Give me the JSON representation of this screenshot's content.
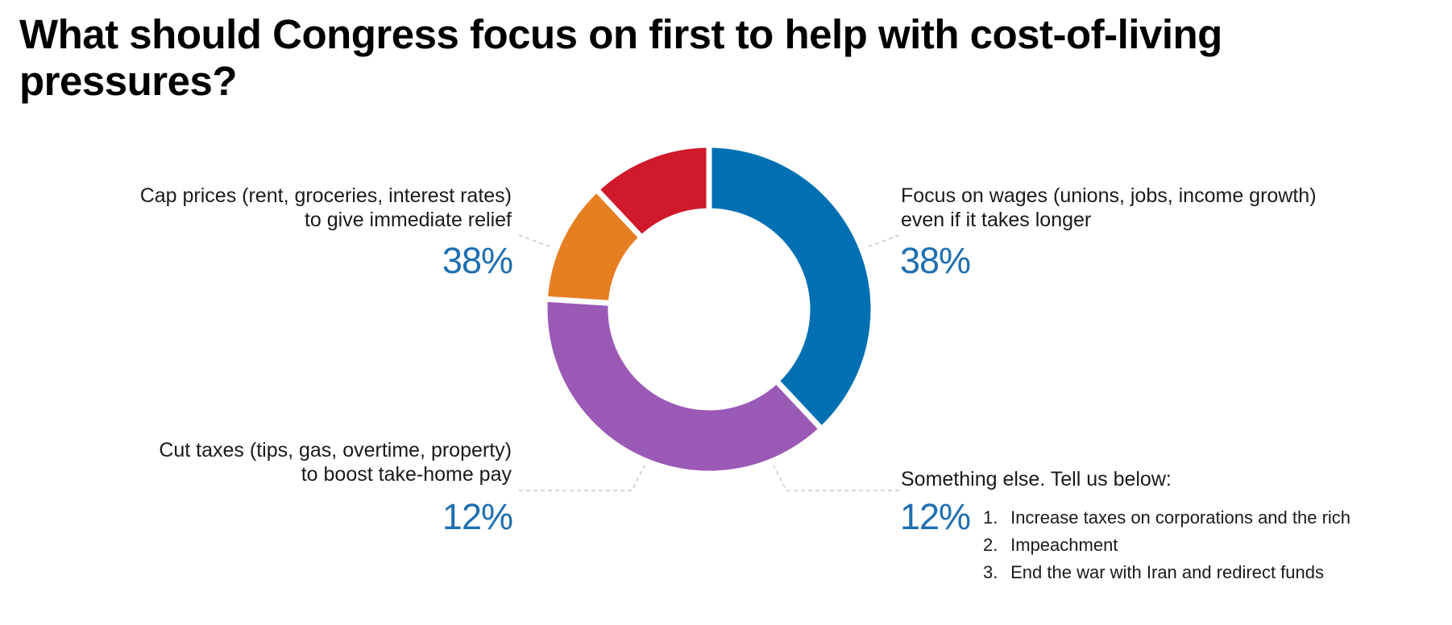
{
  "chart_data": {
    "type": "pie",
    "title": "What should Congress focus on first to help with cost-of-living pressures?",
    "slices": [
      {
        "label_lines": [
          "Cap prices (rent, groceries, interest rates)",
          "to give immediate relief"
        ],
        "value": 38,
        "value_label": "38%",
        "color": "#0070b2"
      },
      {
        "label_lines": [
          "Focus on wages (unions, jobs, income growth)",
          "even if it takes longer"
        ],
        "value": 38,
        "value_label": "38%",
        "color": "#9b59b6"
      },
      {
        "label_lines": [
          "Something else. Tell us below:"
        ],
        "value": 12,
        "value_label": "12%",
        "color": "#e67e22",
        "notes": [
          {
            "num": "1.",
            "text": "Increase taxes on corporations and the rich"
          },
          {
            "num": "2.",
            "text": "Impeachment"
          },
          {
            "num": "3.",
            "text": "End the war with Iran and redirect funds"
          }
        ]
      },
      {
        "label_lines": [
          "Cut taxes (tips, gas, overtime, property)",
          "to boost take-home pay"
        ],
        "value": 12,
        "value_label": "12%",
        "color": "#d0192b"
      }
    ],
    "legend": "none",
    "grid": false
  }
}
